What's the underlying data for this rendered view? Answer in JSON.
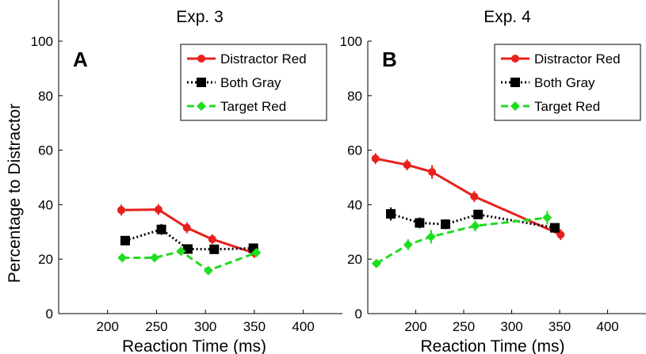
{
  "chart_data": [
    {
      "type": "line",
      "title": "Exp. 3",
      "panel_label": "A",
      "xlabel": "Reaction Time (ms)",
      "ylabel": "Percentage to Distractor",
      "xlim": [
        150,
        440
      ],
      "ylim": [
        0,
        100
      ],
      "xticks": [
        200,
        250,
        300,
        350,
        400
      ],
      "yticks": [
        0,
        20,
        40,
        60,
        80,
        100
      ],
      "legend_position": "top-right",
      "series": [
        {
          "name": "Distractor Red",
          "color": "#e8201c",
          "style": "solid",
          "marker": "circle",
          "x": [
            214,
            252,
            281,
            307,
            350
          ],
          "y": [
            38,
            38.2,
            31.5,
            27.3,
            22.2
          ],
          "err": [
            2,
            2,
            2,
            1.8,
            1.8
          ]
        },
        {
          "name": "Both Gray",
          "color": "#000000",
          "style": "dotted",
          "marker": "square",
          "x": [
            218,
            255,
            282,
            309,
            349
          ],
          "y": [
            26.8,
            30.9,
            23.7,
            23.6,
            24
          ],
          "err": [
            1.2,
            2,
            1.2,
            1.2,
            1.2
          ]
        },
        {
          "name": "Target Red",
          "color": "#1fdd1f",
          "style": "dashed",
          "marker": "diamond",
          "x": [
            215,
            248,
            275,
            303,
            352
          ],
          "y": [
            20.5,
            20.5,
            22.9,
            15.8,
            22.4
          ],
          "err": [
            1.2,
            1.2,
            1.5,
            1.5,
            1.5
          ]
        }
      ]
    },
    {
      "type": "line",
      "title": "Exp. 4",
      "panel_label": "B",
      "xlabel": "Reaction Time (ms)",
      "ylabel": "",
      "xlim": [
        150,
        440
      ],
      "ylim": [
        0,
        100
      ],
      "xticks": [
        200,
        250,
        300,
        350,
        400
      ],
      "yticks": [
        0,
        20,
        40,
        60,
        80,
        100
      ],
      "legend_position": "top-right",
      "series": [
        {
          "name": "Distractor Red",
          "color": "#e8201c",
          "style": "solid",
          "marker": "circle",
          "x": [
            158,
            191,
            217,
            261,
            351
          ],
          "y": [
            56.9,
            54.6,
            52,
            43,
            29
          ],
          "err": [
            2,
            2,
            2.5,
            2,
            2
          ]
        },
        {
          "name": "Both Gray",
          "color": "#000000",
          "style": "dotted",
          "marker": "square",
          "x": [
            174,
            204,
            231,
            265,
            345
          ],
          "y": [
            36.6,
            33.3,
            32.8,
            36.4,
            31.5
          ],
          "err": [
            2.4,
            2,
            1.8,
            1.5,
            1.5
          ]
        },
        {
          "name": "Target Red",
          "color": "#1fdd1f",
          "style": "dashed",
          "marker": "diamond",
          "x": [
            159,
            192,
            216,
            262,
            337
          ],
          "y": [
            18.4,
            25.3,
            28.2,
            32.2,
            35.2
          ],
          "err": [
            1.5,
            2,
            2.5,
            2,
            2.5
          ]
        }
      ]
    }
  ]
}
